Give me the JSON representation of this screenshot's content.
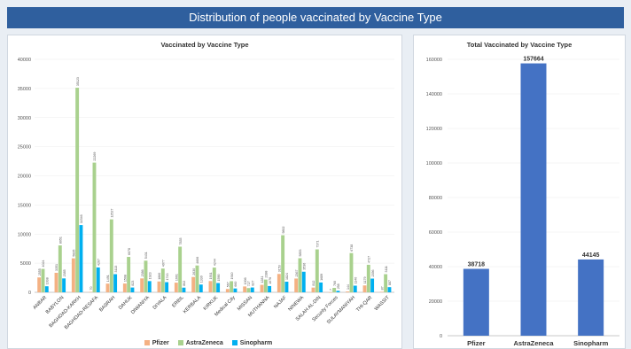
{
  "header": {
    "title": "Distribution of people vaccinated by Vaccine Type"
  },
  "colors": {
    "Pfizer": "#f4b183",
    "AstraZeneca": "#a9d18e",
    "Sinopharm": "#00b0f0",
    "total_bar": "#4472c4",
    "banner": "#2f5f9e"
  },
  "chart_data": [
    {
      "type": "bar",
      "title": "Vaccinated by Vaccine Type",
      "ylim": [
        0,
        40000
      ],
      "yticks": [
        0,
        5000,
        10000,
        15000,
        20000,
        25000,
        30000,
        35000,
        40000
      ],
      "categories": [
        "ANBAR",
        "BABYLON",
        "BAGHDAD-KARKH",
        "BAGHDAD-RESAFA",
        "BASRAH",
        "DAHUK",
        "DIWANIYA",
        "DIYALA",
        "ERBIL",
        "KERBALA",
        "KIRKUK",
        "Medical City",
        "MISSAN",
        "MUTHANNA",
        "NAJAF",
        "NINEWA",
        "SALAH AL-DIN",
        "Security Forces",
        "SULAYMANIYAH",
        "THI-QAR",
        "WASSIT"
      ],
      "series": [
        {
          "name": "Pfizer",
          "values": [
            2555,
            3351,
            5835,
            70,
            1491,
            1508,
            2386,
            1860,
            1661,
            2630,
            1931,
            567,
            1006,
            1281,
            3153,
            2367,
            812,
            7,
            144,
            1179,
            87
          ]
        },
        {
          "name": "AstraZeneca",
          "values": [
            4024,
            8051,
            35123,
            22269,
            12527,
            6078,
            5431,
            4077,
            7835,
            4606,
            4244,
            1910,
            727,
            2188,
            9802,
            5853,
            7371,
            760,
            6738,
            4727,
            3111
          ]
        },
        {
          "name": "Sinopharm",
          "values": [
            1038,
            2385,
            11546,
            4267,
            3113,
            823,
            1923,
            1743,
            802,
            1330,
            1590,
            660,
            827,
            1076,
            1824,
            3536,
            1689,
            258,
            1140,
            2356,
            887
          ]
        }
      ],
      "legend": [
        "Pfizer",
        "AstraZeneca",
        "Sinopharm"
      ],
      "legend_position": "bottom"
    },
    {
      "type": "bar",
      "title": "Total Vaccinated by Vaccine Type",
      "ylim": [
        0,
        160000
      ],
      "yticks": [
        0,
        20000,
        40000,
        60000,
        80000,
        100000,
        120000,
        140000,
        160000
      ],
      "categories": [
        "Pfizer",
        "AstraZeneca",
        "Sinopharm"
      ],
      "values": [
        38718,
        157664,
        44145
      ]
    }
  ]
}
